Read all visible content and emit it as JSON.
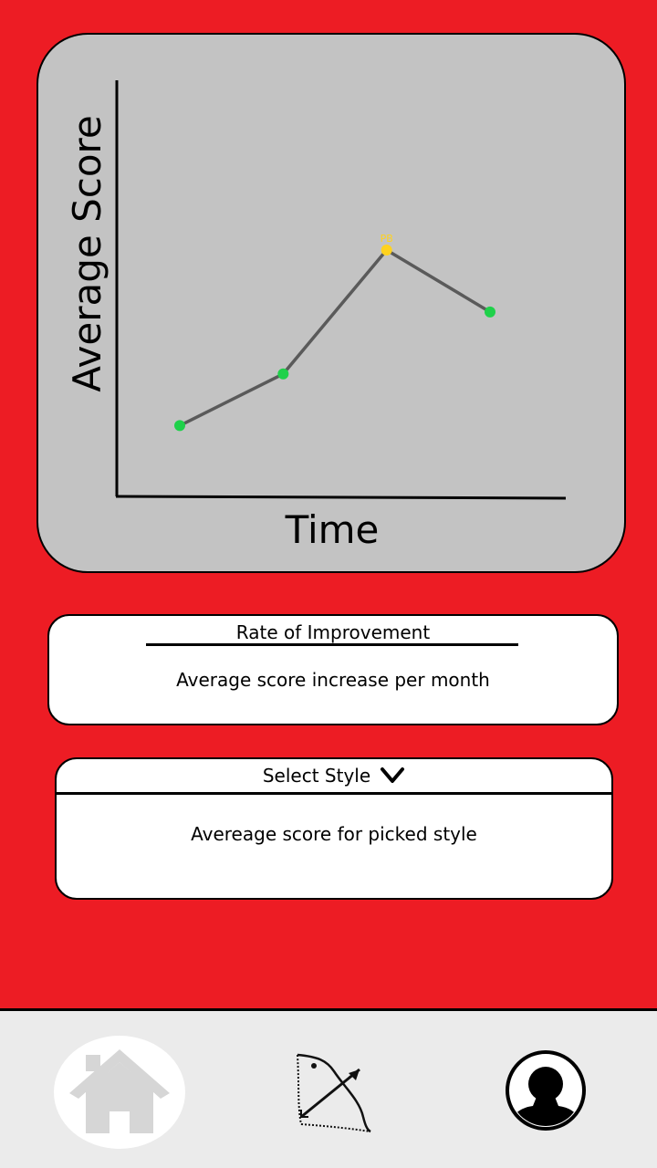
{
  "chart_data": {
    "type": "line",
    "xlabel": "Time",
    "ylabel": "Average Score",
    "x": [
      1,
      2,
      3,
      4
    ],
    "series": [
      {
        "values": [
          1.0,
          2.0,
          4.4,
          3.2
        ]
      }
    ],
    "ylim": [
      0,
      5
    ],
    "highlight": {
      "index": 2,
      "label": "PB",
      "color": "#ffd21e"
    },
    "line_color": "#5a5a5a",
    "point_color": "#1fd14a",
    "grid": false
  },
  "improvement": {
    "title": "Rate of Improvement",
    "body": "Average score increase per month"
  },
  "style_select": {
    "label": "Select Style",
    "icon": "chevron-down-icon",
    "body": "Avereage score for picked style"
  },
  "nav": {
    "items": [
      {
        "name": "home",
        "icon": "home-icon"
      },
      {
        "name": "archery",
        "icon": "bow-and-arrow-icon"
      },
      {
        "name": "profile",
        "icon": "user-profile-icon"
      }
    ]
  },
  "colors": {
    "background": "#ed1c24",
    "card": "#c3c3c3",
    "nav_bar": "#ebebeb"
  }
}
